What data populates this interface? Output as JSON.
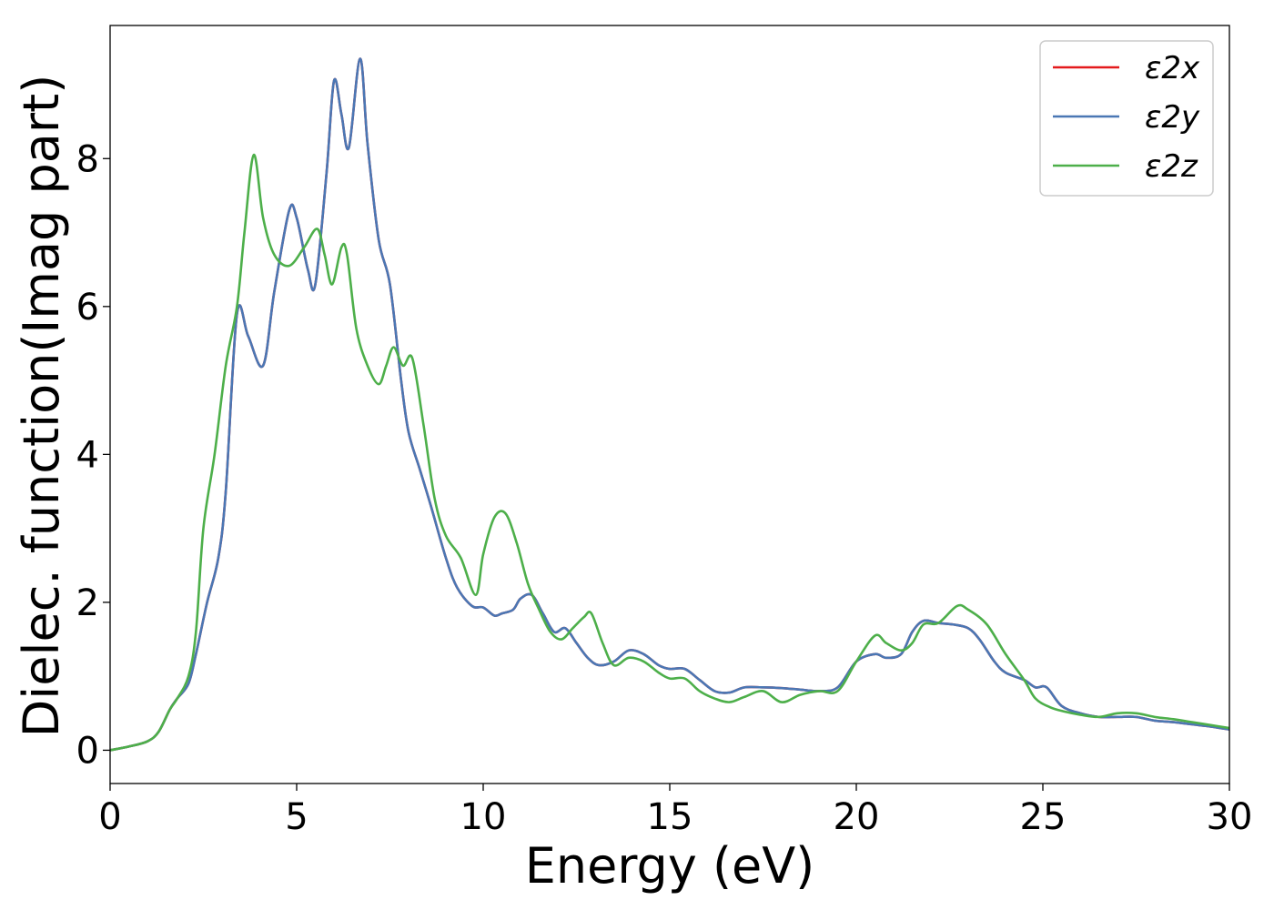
{
  "chart_data": {
    "type": "line",
    "xlabel": "Energy (eV)",
    "ylabel": "Dielec. function(Imag part)",
    "xlim": [
      0,
      30
    ],
    "ylim": [
      -0.45,
      9.8
    ],
    "xticks": [
      0,
      5,
      10,
      15,
      20,
      25,
      30
    ],
    "yticks": [
      0,
      2,
      4,
      6,
      8
    ],
    "grid": false,
    "legend_position": "top-right",
    "series": [
      {
        "name": "ε2x",
        "color": "#e41a1c",
        "x": [
          0,
          0.5,
          1.0,
          1.3,
          1.6,
          1.8,
          2.1,
          2.3,
          2.6,
          2.9,
          3.1,
          3.4,
          3.7,
          4.1,
          4.4,
          4.8,
          5.0,
          5.3,
          5.5,
          5.8,
          6.0,
          6.2,
          6.4,
          6.7,
          6.9,
          7.2,
          7.5,
          7.8,
          8.0,
          8.3,
          8.6,
          9.0,
          9.3,
          9.7,
          10.0,
          10.3,
          10.5,
          10.8,
          11.0,
          11.3,
          11.6,
          11.9,
          12.2,
          12.5,
          12.8,
          13.1,
          13.5,
          13.9,
          14.3,
          14.7,
          15.0,
          15.4,
          15.8,
          16.2,
          16.6,
          17.0,
          17.5,
          18.0,
          18.5,
          19.0,
          19.5,
          20.0,
          20.5,
          20.8,
          21.2,
          21.5,
          21.8,
          22.2,
          22.6,
          23.0,
          23.3,
          23.7,
          24.0,
          24.5,
          24.8,
          25.1,
          25.5,
          26.0,
          26.5,
          27.0,
          27.5,
          28.0,
          28.5,
          29.0,
          29.5,
          30.0
        ],
        "values": [
          0,
          0.05,
          0.12,
          0.25,
          0.55,
          0.7,
          0.9,
          1.3,
          2.0,
          2.6,
          3.5,
          5.9,
          5.6,
          5.2,
          6.2,
          7.3,
          7.2,
          6.5,
          6.3,
          7.8,
          9.05,
          8.6,
          8.15,
          9.35,
          8.2,
          6.9,
          6.3,
          5.0,
          4.3,
          3.8,
          3.3,
          2.6,
          2.2,
          1.95,
          1.93,
          1.82,
          1.85,
          1.9,
          2.05,
          2.1,
          1.85,
          1.6,
          1.65,
          1.45,
          1.25,
          1.15,
          1.2,
          1.35,
          1.3,
          1.15,
          1.1,
          1.1,
          0.95,
          0.8,
          0.78,
          0.85,
          0.85,
          0.84,
          0.82,
          0.8,
          0.85,
          1.2,
          1.3,
          1.25,
          1.3,
          1.6,
          1.75,
          1.72,
          1.7,
          1.65,
          1.5,
          1.2,
          1.05,
          0.95,
          0.85,
          0.85,
          0.6,
          0.5,
          0.45,
          0.45,
          0.45,
          0.4,
          0.38,
          0.35,
          0.32,
          0.28
        ]
      },
      {
        "name": "ε2y",
        "color": "#4a77b4",
        "x": [
          0,
          0.5,
          1.0,
          1.3,
          1.6,
          1.8,
          2.1,
          2.3,
          2.6,
          2.9,
          3.1,
          3.4,
          3.7,
          4.1,
          4.4,
          4.8,
          5.0,
          5.3,
          5.5,
          5.8,
          6.0,
          6.2,
          6.4,
          6.7,
          6.9,
          7.2,
          7.5,
          7.8,
          8.0,
          8.3,
          8.6,
          9.0,
          9.3,
          9.7,
          10.0,
          10.3,
          10.5,
          10.8,
          11.0,
          11.3,
          11.6,
          11.9,
          12.2,
          12.5,
          12.8,
          13.1,
          13.5,
          13.9,
          14.3,
          14.7,
          15.0,
          15.4,
          15.8,
          16.2,
          16.6,
          17.0,
          17.5,
          18.0,
          18.5,
          19.0,
          19.5,
          20.0,
          20.5,
          20.8,
          21.2,
          21.5,
          21.8,
          22.2,
          22.6,
          23.0,
          23.3,
          23.7,
          24.0,
          24.5,
          24.8,
          25.1,
          25.5,
          26.0,
          26.5,
          27.0,
          27.5,
          28.0,
          28.5,
          29.0,
          29.5,
          30.0
        ],
        "values": [
          0,
          0.05,
          0.12,
          0.25,
          0.55,
          0.7,
          0.9,
          1.3,
          2.0,
          2.6,
          3.5,
          5.9,
          5.6,
          5.2,
          6.2,
          7.3,
          7.2,
          6.5,
          6.3,
          7.8,
          9.05,
          8.6,
          8.15,
          9.35,
          8.2,
          6.9,
          6.3,
          5.0,
          4.3,
          3.8,
          3.3,
          2.6,
          2.2,
          1.95,
          1.93,
          1.82,
          1.85,
          1.9,
          2.05,
          2.1,
          1.85,
          1.6,
          1.65,
          1.45,
          1.25,
          1.15,
          1.2,
          1.35,
          1.3,
          1.15,
          1.1,
          1.1,
          0.95,
          0.8,
          0.78,
          0.85,
          0.85,
          0.84,
          0.82,
          0.8,
          0.85,
          1.2,
          1.3,
          1.25,
          1.3,
          1.6,
          1.75,
          1.72,
          1.7,
          1.65,
          1.5,
          1.2,
          1.05,
          0.95,
          0.85,
          0.85,
          0.6,
          0.5,
          0.45,
          0.45,
          0.45,
          0.4,
          0.38,
          0.35,
          0.32,
          0.28
        ]
      },
      {
        "name": "ε2z",
        "color": "#4daf4a",
        "x": [
          0,
          0.5,
          1.0,
          1.3,
          1.6,
          1.8,
          2.1,
          2.3,
          2.5,
          2.8,
          3.1,
          3.4,
          3.6,
          3.85,
          4.1,
          4.4,
          4.8,
          5.2,
          5.55,
          5.75,
          5.95,
          6.2,
          6.35,
          6.6,
          6.9,
          7.2,
          7.4,
          7.6,
          7.85,
          8.1,
          8.4,
          8.7,
          9.0,
          9.4,
          9.8,
          10.0,
          10.3,
          10.6,
          10.9,
          11.2,
          11.5,
          11.8,
          12.1,
          12.4,
          12.7,
          12.9,
          13.2,
          13.5,
          13.9,
          14.3,
          14.7,
          15.0,
          15.4,
          15.8,
          16.2,
          16.6,
          17.0,
          17.5,
          18.0,
          18.5,
          19.0,
          19.5,
          20.0,
          20.5,
          20.8,
          21.2,
          21.5,
          21.8,
          22.2,
          22.7,
          23.0,
          23.5,
          24.0,
          24.5,
          24.8,
          25.2,
          25.6,
          26.0,
          26.5,
          27.0,
          27.5,
          28.0,
          28.5,
          29.0,
          29.5,
          30.0
        ],
        "values": [
          0,
          0.05,
          0.12,
          0.25,
          0.55,
          0.7,
          1.0,
          1.6,
          3.0,
          4.0,
          5.2,
          6.0,
          7.0,
          8.05,
          7.2,
          6.7,
          6.55,
          6.8,
          7.05,
          6.7,
          6.3,
          6.8,
          6.7,
          5.7,
          5.2,
          4.95,
          5.2,
          5.45,
          5.2,
          5.3,
          4.4,
          3.4,
          2.9,
          2.6,
          2.1,
          2.65,
          3.15,
          3.2,
          2.8,
          2.25,
          1.9,
          1.6,
          1.5,
          1.65,
          1.8,
          1.85,
          1.45,
          1.15,
          1.25,
          1.2,
          1.05,
          0.97,
          0.97,
          0.8,
          0.7,
          0.65,
          0.72,
          0.8,
          0.65,
          0.75,
          0.8,
          0.8,
          1.2,
          1.55,
          1.45,
          1.35,
          1.45,
          1.7,
          1.72,
          1.95,
          1.9,
          1.7,
          1.3,
          0.95,
          0.7,
          0.58,
          0.52,
          0.48,
          0.45,
          0.5,
          0.5,
          0.45,
          0.42,
          0.38,
          0.34,
          0.3
        ]
      }
    ]
  }
}
